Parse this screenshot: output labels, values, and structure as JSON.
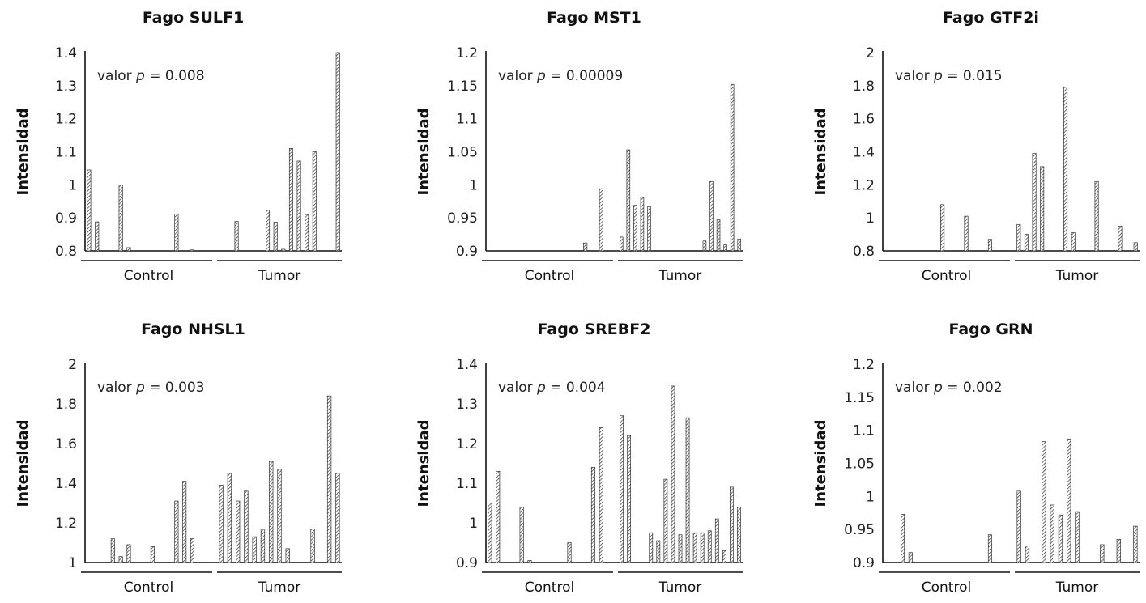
{
  "y_axis_label": "Intensidad",
  "group_labels": [
    "Control",
    "Tumor"
  ],
  "p_prefix": "valor ",
  "p_symbol": "p",
  "p_eq": " = ",
  "colors": {
    "axis": "#111111",
    "bar_hatch": "#333333",
    "background": "#ffffff"
  },
  "chart_data": [
    {
      "type": "bar",
      "title": "Fago SULF1",
      "ylabel": "Intensidad",
      "ylim": [
        0.8,
        1.4
      ],
      "yticks": [
        "0.8",
        "0.9",
        "1",
        "1.1",
        "1.2",
        "1.3",
        "1.4"
      ],
      "p_value": "0.008",
      "groups": [
        "Control",
        "Tumor"
      ],
      "control_values": [
        1.045,
        0.888,
        0.8,
        0.8,
        0.999,
        0.81,
        0.8,
        0.8,
        0.8,
        0.8,
        0.8,
        0.912,
        0.8,
        0.803,
        0.8,
        0.8
      ],
      "tumor_values": [
        0.8,
        0.8,
        0.889,
        0.8,
        0.8,
        0.8,
        0.923,
        0.887,
        0.805,
        1.11,
        1.072,
        0.91,
        1.1,
        0.8,
        0.8,
        1.4
      ]
    },
    {
      "type": "bar",
      "title": "Fago MST1",
      "ylabel": "Intensidad",
      "ylim": [
        0.9,
        1.2
      ],
      "yticks": [
        "0.9",
        "0.95",
        "1",
        "1.05",
        "1.1",
        "1.15",
        "1.2"
      ],
      "p_value": "0.00009",
      "groups": [
        "Control",
        "Tumor"
      ],
      "control_values": [
        0.9,
        0.9,
        0.9,
        0.9,
        0.9,
        0.9,
        0.9,
        0.9,
        0.9,
        0.9,
        0.9,
        0.9,
        0.912,
        0.9,
        0.994,
        0.9
      ],
      "tumor_values": [
        0.921,
        1.053,
        0.969,
        0.981,
        0.967,
        0.9,
        0.9,
        0.9,
        0.9,
        0.9,
        0.9,
        0.9,
        0.915,
        1.005,
        0.947,
        0.909,
        1.152,
        0.918
      ]
    },
    {
      "type": "bar",
      "title": "Fago GTF2i",
      "ylabel": "Intensidad",
      "ylim": [
        0.8,
        2
      ],
      "yticks": [
        "0.8",
        "1",
        "1.2",
        "1.4",
        "1.6",
        "1.8",
        "2"
      ],
      "p_value": "0.015",
      "groups": [
        "Control",
        "Tumor"
      ],
      "control_values": [
        0.8,
        0.8,
        0.8,
        0.8,
        0.8,
        0.8,
        0.8,
        1.08,
        0.8,
        0.8,
        1.01,
        0.8,
        0.8,
        0.87,
        0.8,
        0.8
      ],
      "tumor_values": [
        0.96,
        0.9,
        1.39,
        1.31,
        0.8,
        0.8,
        1.79,
        0.91,
        0.8,
        0.8,
        1.22,
        0.8,
        0.8,
        0.95,
        0.8,
        0.85
      ]
    },
    {
      "type": "bar",
      "title": "Fago NHSL1",
      "ylabel": "Intensidad",
      "ylim": [
        1,
        2
      ],
      "yticks": [
        "1",
        "1.2",
        "1.4",
        "1.6",
        "1.8",
        "2"
      ],
      "p_value": "0.003",
      "groups": [
        "Control",
        "Tumor"
      ],
      "control_values": [
        1.0,
        1.0,
        1.0,
        1.12,
        1.03,
        1.09,
        1.0,
        1.0,
        1.08,
        1.0,
        1.0,
        1.31,
        1.41,
        1.12,
        1.0,
        1.0
      ],
      "tumor_values": [
        1.39,
        1.45,
        1.31,
        1.36,
        1.13,
        1.17,
        1.51,
        1.47,
        1.07,
        1.0,
        1.0,
        1.17,
        1.0,
        1.84,
        1.45
      ]
    },
    {
      "type": "bar",
      "title": "Fago SREBF2",
      "ylabel": "Intensidad",
      "ylim": [
        0.9,
        1.4
      ],
      "yticks": [
        "0.9",
        "1",
        "1.1",
        "1.2",
        "1.3",
        "1.4"
      ],
      "p_value": "0.004",
      "groups": [
        "Control",
        "Tumor"
      ],
      "control_values": [
        1.05,
        1.13,
        0.9,
        0.9,
        1.04,
        0.905,
        0.9,
        0.9,
        0.9,
        0.9,
        0.95,
        0.9,
        0.9,
        1.14,
        1.24,
        0.9
      ],
      "tumor_values": [
        1.27,
        1.22,
        0.9,
        0.9,
        0.975,
        0.955,
        1.11,
        1.345,
        0.97,
        1.265,
        0.975,
        0.975,
        0.98,
        1.01,
        0.93,
        1.09,
        1.04
      ]
    },
    {
      "type": "bar",
      "title": "Fago GRN",
      "ylabel": "Intensidad",
      "ylim": [
        0.9,
        1.2
      ],
      "yticks": [
        "0.9",
        "0.95",
        "1",
        "1.05",
        "1.1",
        "1.15",
        "1.2"
      ],
      "p_value": "0.002",
      "groups": [
        "Control",
        "Tumor"
      ],
      "control_values": [
        0.9,
        0.9,
        0.973,
        0.915,
        0.9,
        0.9,
        0.9,
        0.9,
        0.9,
        0.9,
        0.9,
        0.9,
        0.9,
        0.942,
        0.9,
        0.9
      ],
      "tumor_values": [
        1.008,
        0.925,
        0.9,
        1.083,
        0.987,
        0.972,
        1.087,
        0.977,
        0.9,
        0.9,
        0.927,
        0.9,
        0.935,
        0.9,
        0.955
      ]
    }
  ]
}
